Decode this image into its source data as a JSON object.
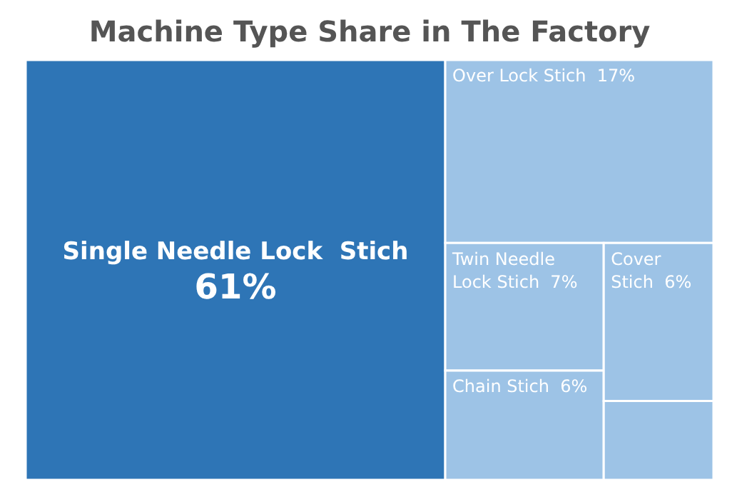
{
  "chart_data": {
    "type": "other",
    "title": "Machine Type Share in The Factory",
    "categories": [
      "Single Needle Lock  Stich",
      "Over Lock Stich",
      "Twin Needle Lock Stich",
      "Chain Stich",
      "Cover Stich"
    ],
    "values": [
      61,
      17,
      7,
      6,
      6
    ],
    "value_labels": [
      "61%",
      "17%",
      "7%",
      "6%",
      "6%"
    ],
    "colors": [
      "#2e75b6",
      "#9dc3e6",
      "#9dc3e6",
      "#9dc3e6",
      "#9dc3e6"
    ]
  }
}
